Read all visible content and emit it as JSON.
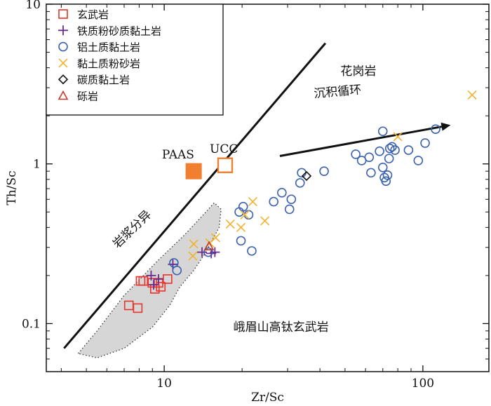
{
  "chart_data": {
    "type": "scatter",
    "xscale": "log",
    "yscale": "log",
    "xlim": [
      3.5,
      180
    ],
    "ylim": [
      0.05,
      10
    ],
    "xlabel": "Zr/Sc",
    "ylabel": "Th/Sc",
    "x_ticks": [
      {
        "value": 10,
        "label": "10"
      },
      {
        "value": 100,
        "label": "100"
      }
    ],
    "y_ticks": [
      {
        "value": 0.1,
        "label": "0.1"
      },
      {
        "value": 1,
        "label": "1"
      },
      {
        "value": 10,
        "label": "10"
      }
    ],
    "legend_position": "top-left",
    "legend": [
      {
        "label": "玄武岩",
        "marker": "square",
        "color": "#e8332a"
      },
      {
        "label": "铁质粉砂质黏土岩",
        "marker": "plus",
        "color": "#6a2c8e"
      },
      {
        "label": "铝土质黏土岩",
        "marker": "circle",
        "color": "#3a62b0"
      },
      {
        "label": "黏土质粉砂岩",
        "marker": "cross",
        "color": "#f2b22e"
      },
      {
        "label": "碳质黏土岩",
        "marker": "diamond",
        "color": "#111111"
      },
      {
        "label": "砾岩",
        "marker": "triangle",
        "color": "#c0392b"
      }
    ],
    "series": [
      {
        "name": "玄武岩",
        "marker": "square",
        "color": "#e8332a",
        "points": [
          [
            8.1,
            0.185
          ],
          [
            8.3,
            0.185
          ],
          [
            9.0,
            0.18
          ],
          [
            9.2,
            0.165
          ],
          [
            9.5,
            0.18
          ],
          [
            9.7,
            0.17
          ],
          [
            10.3,
            0.19
          ],
          [
            7.3,
            0.13
          ],
          [
            7.9,
            0.125
          ]
        ]
      },
      {
        "name": "铁质粉砂质黏土岩",
        "marker": "plus",
        "color": "#6a2c8e",
        "points": [
          [
            8.9,
            0.2
          ],
          [
            9.1,
            0.175
          ],
          [
            9.5,
            0.19
          ],
          [
            10.8,
            0.235
          ],
          [
            14.0,
            0.28
          ],
          [
            15.2,
            0.275
          ],
          [
            15.7,
            0.28
          ]
        ]
      },
      {
        "name": "铝土质黏土岩",
        "marker": "circle",
        "color": "#3a62b0",
        "points": [
          [
            10.9,
            0.24
          ],
          [
            11.2,
            0.215
          ],
          [
            14.8,
            0.28
          ],
          [
            19.5,
            0.5
          ],
          [
            20.2,
            0.54
          ],
          [
            21.2,
            0.48
          ],
          [
            19.8,
            0.33
          ],
          [
            21.8,
            0.285
          ],
          [
            26.5,
            0.58
          ],
          [
            28.5,
            0.66
          ],
          [
            30.5,
            0.52
          ],
          [
            31.0,
            0.6
          ],
          [
            33.5,
            0.76
          ],
          [
            34.0,
            0.88
          ],
          [
            41.5,
            0.9
          ],
          [
            55.0,
            1.15
          ],
          [
            58.0,
            1.05
          ],
          [
            62.0,
            1.1
          ],
          [
            63.0,
            0.88
          ],
          [
            68.0,
            1.2
          ],
          [
            70.0,
            1.6
          ],
          [
            70.0,
            0.95
          ],
          [
            71.0,
            0.82
          ],
          [
            72.0,
            0.78
          ],
          [
            73.0,
            0.85
          ],
          [
            74.0,
            1.08
          ],
          [
            74.5,
            1.25
          ],
          [
            76.0,
            1.28
          ],
          [
            78.0,
            1.22
          ],
          [
            88.0,
            1.22
          ],
          [
            96.0,
            1.05
          ],
          [
            102.0,
            1.35
          ],
          [
            112.0,
            1.65
          ]
        ]
      },
      {
        "name": "黏土质粉砂岩",
        "marker": "cross",
        "color": "#f2b22e",
        "points": [
          [
            13.0,
            0.315
          ],
          [
            12.9,
            0.265
          ],
          [
            15.0,
            0.32
          ],
          [
            15.8,
            0.345
          ],
          [
            18.0,
            0.42
          ],
          [
            19.8,
            0.4
          ],
          [
            20.5,
            0.48
          ],
          [
            22.0,
            0.58
          ],
          [
            24.5,
            0.44
          ],
          [
            80.0,
            1.48
          ],
          [
            155.0,
            2.7
          ]
        ]
      },
      {
        "name": "碳质黏土岩",
        "marker": "diamond",
        "color": "#111111",
        "points": [
          [
            35.5,
            0.84
          ]
        ]
      },
      {
        "name": "砾岩",
        "marker": "triangle",
        "color": "#c0392b",
        "points": [
          [
            14.9,
            0.305
          ]
        ]
      },
      {
        "name": "PAAS",
        "marker": "filled-square",
        "color": "#f07f2f",
        "points": [
          [
            13.0,
            0.9
          ]
        ]
      },
      {
        "name": "UCC",
        "marker": "open-square",
        "color": "#f07f2f",
        "points": [
          [
            17.2,
            0.98
          ]
        ]
      }
    ],
    "lines": [
      {
        "name": "花岗岩",
        "points": [
          [
            4.1,
            0.07
          ],
          [
            42.0,
            5.7
          ]
        ]
      }
    ],
    "arrows": [
      {
        "name": "沉积循环",
        "from": [
          28.0,
          1.12
        ],
        "to": [
          128.0,
          1.75
        ]
      }
    ],
    "fields": [
      {
        "name": "峨眉山高钛玄武岩",
        "style": "gray-fill-dotted",
        "polygon": [
          [
            4.65,
            0.065
          ],
          [
            5.5,
            0.09
          ],
          [
            7.0,
            0.15
          ],
          [
            9.5,
            0.25
          ],
          [
            12.0,
            0.36
          ],
          [
            14.5,
            0.5
          ],
          [
            15.6,
            0.57
          ],
          [
            16.6,
            0.52
          ],
          [
            16.3,
            0.4
          ],
          [
            14.5,
            0.28
          ],
          [
            13.0,
            0.215
          ],
          [
            11.5,
            0.17
          ],
          [
            10.5,
            0.13
          ],
          [
            9.0,
            0.095
          ],
          [
            7.0,
            0.07
          ],
          [
            5.5,
            0.061
          ],
          [
            4.65,
            0.065
          ]
        ]
      }
    ],
    "annotations": [
      {
        "text": "花岗岩",
        "x": 48.0,
        "y": 3.6,
        "angle": 0
      },
      {
        "text": "沉积循环",
        "x": 38.0,
        "y": 2.6,
        "angle": -5
      },
      {
        "text": "岩浆分异",
        "x": 6.6,
        "y": 0.295,
        "angle": -44
      },
      {
        "text": "峨眉山高钛玄武岩",
        "x": 18.5,
        "y": 0.09,
        "angle": 0
      },
      {
        "text": "PAAS",
        "x": 9.8,
        "y": 1.08,
        "angle": 0
      },
      {
        "text": "UCC",
        "x": 15.0,
        "y": 1.17,
        "angle": 0
      }
    ]
  }
}
